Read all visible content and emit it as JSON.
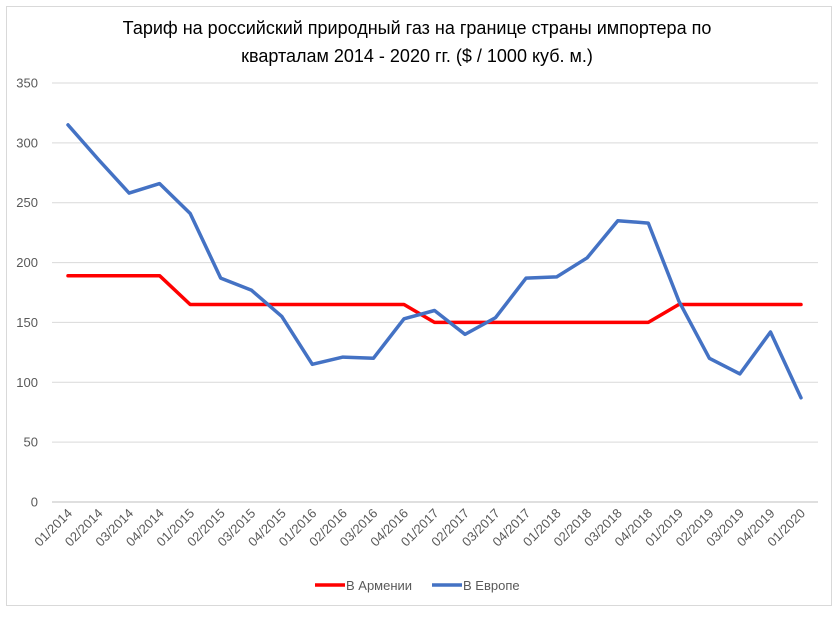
{
  "chart_data": {
    "type": "line",
    "title_lines": [
      "Тариф на российский природный газ на границе страны импортера по",
      "кварталам 2014 - 2020 гг. ($ / 1000 куб. м.)"
    ],
    "categories": [
      "01/2014",
      "02/2014",
      "03/2014",
      "04/2014",
      "01/2015",
      "02/2015",
      "03/2015",
      "04/2015",
      "01/2016",
      "02/2016",
      "03/2016",
      "04/2016",
      "01/2017",
      "02/2017",
      "03/2017",
      "04/2017",
      "01/2018",
      "02/2018",
      "03/2018",
      "04/2018",
      "01/2019",
      "02/2019",
      "03/2019",
      "04/2019",
      "01/2020"
    ],
    "series": [
      {
        "name": "В Армении",
        "color": "#ff0000",
        "values": [
          189,
          189,
          189,
          189,
          165,
          165,
          165,
          165,
          165,
          165,
          165,
          165,
          150,
          150,
          150,
          150,
          150,
          150,
          150,
          150,
          165,
          165,
          165,
          165,
          165
        ]
      },
      {
        "name": "В Европе",
        "color": "#4472c4",
        "values": [
          315,
          286,
          258,
          266,
          241,
          187,
          177,
          155,
          115,
          121,
          120,
          153,
          160,
          140,
          154,
          187,
          188,
          204,
          235,
          233,
          168,
          120,
          107,
          142,
          87
        ]
      }
    ],
    "yticks": [
      0,
      50,
      100,
      150,
      200,
      250,
      300,
      350
    ],
    "ylim": [
      0,
      350
    ],
    "grid": true,
    "legend_position": "bottom"
  }
}
